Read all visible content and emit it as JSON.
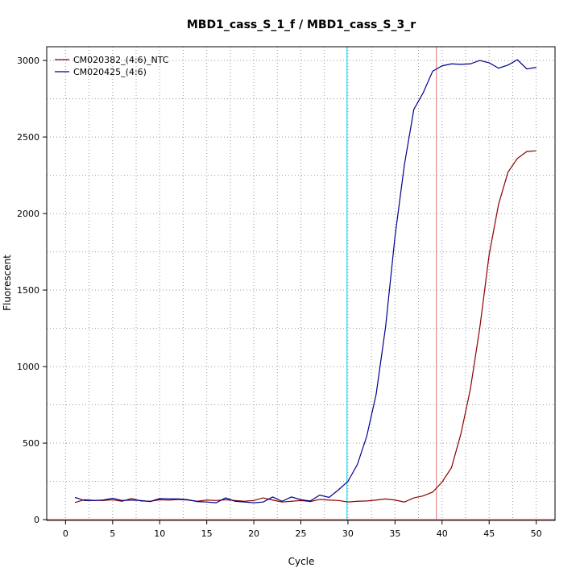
{
  "chart_data": {
    "type": "line",
    "title": "MBD1_cass_S_1_f / MBD1_cass_S_3_r",
    "xlabel": "Cycle",
    "ylabel": "Fluorescent",
    "xlim": [
      -2,
      52
    ],
    "ylim": [
      -5,
      3090
    ],
    "x_ticks": [
      0,
      5,
      10,
      15,
      20,
      25,
      30,
      35,
      40,
      45,
      50
    ],
    "y_ticks": [
      0,
      500,
      1000,
      1500,
      2000,
      2500,
      3000
    ],
    "grid": true,
    "legend_position": "top-left",
    "x": [
      1,
      2,
      3,
      4,
      5,
      6,
      7,
      8,
      9,
      10,
      11,
      12,
      13,
      14,
      15,
      16,
      17,
      18,
      19,
      20,
      21,
      22,
      23,
      24,
      25,
      26,
      27,
      28,
      29,
      30,
      31,
      32,
      33,
      34,
      35,
      36,
      37,
      38,
      39,
      40,
      41,
      42,
      43,
      44,
      45,
      46,
      47,
      48,
      49,
      50
    ],
    "series": [
      {
        "name": "CM020382_(4:6)_NTC",
        "color": "#8b0000",
        "values": [
          112,
          130,
          126,
          125,
          130,
          120,
          138,
          122,
          120,
          130,
          128,
          132,
          128,
          120,
          128,
          125,
          130,
          125,
          120,
          125,
          142,
          128,
          115,
          120,
          125,
          118,
          132,
          128,
          125,
          115,
          120,
          122,
          128,
          135,
          128,
          115,
          142,
          155,
          180,
          245,
          340,
          560,
          850,
          1250,
          1730,
          2060,
          2270,
          2360,
          2405,
          2410
        ]
      },
      {
        "name": "CM020425_(4:6)",
        "color": "#00008b",
        "values": [
          145,
          125,
          125,
          128,
          140,
          125,
          128,
          125,
          118,
          138,
          136,
          135,
          130,
          118,
          115,
          110,
          142,
          120,
          115,
          110,
          115,
          148,
          120,
          148,
          130,
          122,
          160,
          145,
          195,
          250,
          360,
          545,
          820,
          1260,
          1850,
          2320,
          2680,
          2790,
          2930,
          2965,
          2978,
          2975,
          2978,
          3000,
          2985,
          2950,
          2970,
          3005,
          2945,
          2955
        ]
      }
    ],
    "vertical_lines": [
      {
        "x": 29.9,
        "color": "#00cfe8"
      },
      {
        "x": 39.4,
        "color": "#e07070"
      }
    ],
    "horizontal_lines": [
      {
        "y": 0,
        "color": "#e07070"
      }
    ]
  }
}
